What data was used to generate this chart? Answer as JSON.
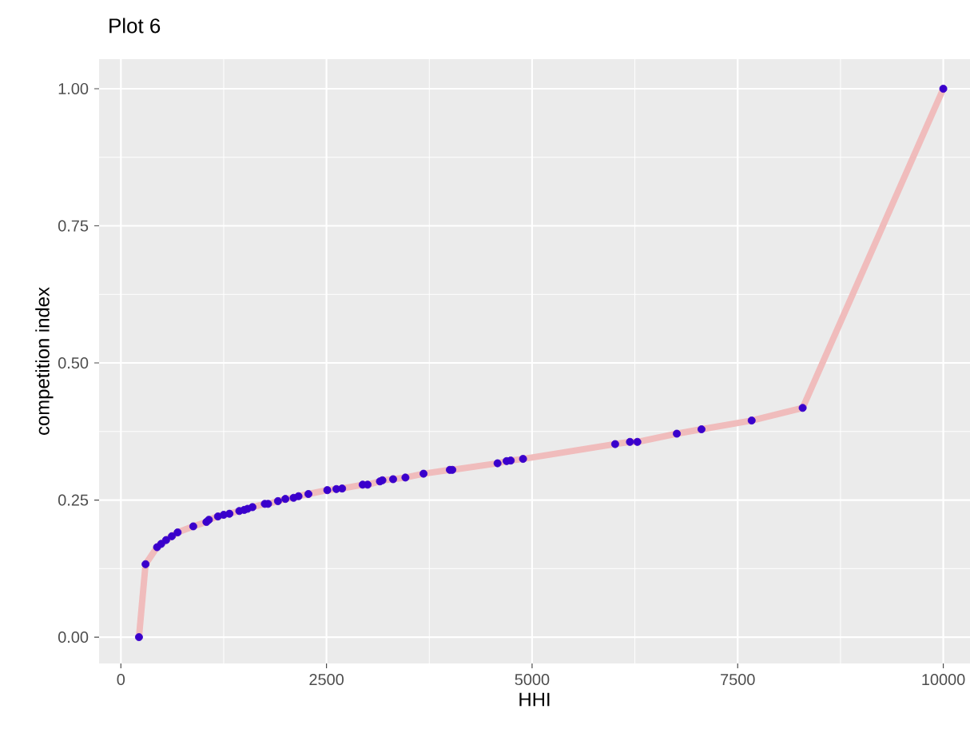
{
  "chart_data": {
    "type": "line",
    "title": "Plot 6",
    "xlabel": "HHI",
    "ylabel": "competition index",
    "x": [
      220,
      300,
      440,
      490,
      550,
      620,
      690,
      880,
      1040,
      1070,
      1180,
      1250,
      1320,
      1440,
      1500,
      1540,
      1600,
      1750,
      1790,
      1910,
      2000,
      2100,
      2160,
      2280,
      2510,
      2620,
      2690,
      2940,
      3000,
      3150,
      3180,
      3310,
      3460,
      3680,
      4000,
      4030,
      4580,
      4690,
      4740,
      4890,
      6010,
      6190,
      6280,
      6760,
      7060,
      7670,
      8290,
      10000
    ],
    "series": [
      {
        "color": "#f0bcbc",
        "marker": "none",
        "values": [
          0,
          0.133,
          0.164,
          0.17,
          0.177,
          0.184,
          0.191,
          0.202,
          0.21,
          0.214,
          0.22,
          0.223,
          0.225,
          0.23,
          0.232,
          0.234,
          0.237,
          0.243,
          0.243,
          0.248,
          0.252,
          0.254,
          0.257,
          0.261,
          0.268,
          0.27,
          0.271,
          0.278,
          0.278,
          0.284,
          0.286,
          0.288,
          0.291,
          0.298,
          0.305,
          0.305,
          0.317,
          0.321,
          0.322,
          0.325,
          0.352,
          0.356,
          0.356,
          0.371,
          0.379,
          0.395,
          0.418,
          1.0
        ]
      },
      {
        "type": "scatter",
        "marker": "circle",
        "color": "#3a00cc",
        "values": [
          0,
          0.133,
          0.164,
          0.17,
          0.177,
          0.184,
          0.191,
          0.202,
          0.21,
          0.214,
          0.22,
          0.223,
          0.225,
          0.23,
          0.232,
          0.234,
          0.237,
          0.243,
          0.243,
          0.248,
          0.252,
          0.254,
          0.257,
          0.261,
          0.268,
          0.27,
          0.271,
          0.278,
          0.278,
          0.284,
          0.286,
          0.288,
          0.291,
          0.298,
          0.305,
          0.305,
          0.317,
          0.321,
          0.322,
          0.325,
          0.352,
          0.356,
          0.356,
          0.371,
          0.379,
          0.395,
          0.418,
          1.0
        ]
      }
    ],
    "xlim": [
      -265,
      10325
    ],
    "ylim": [
      -0.048,
      1.054
    ],
    "xticks": [
      0,
      2500,
      5000,
      7500,
      10000
    ],
    "yticks": [
      {
        "value": 0,
        "label": "0.00"
      },
      {
        "value": 0.25,
        "label": "0.25"
      },
      {
        "value": 0.5,
        "label": "0.50"
      },
      {
        "value": 0.75,
        "label": "0.75"
      },
      {
        "value": 1,
        "label": "1.00"
      }
    ],
    "grid": true
  }
}
